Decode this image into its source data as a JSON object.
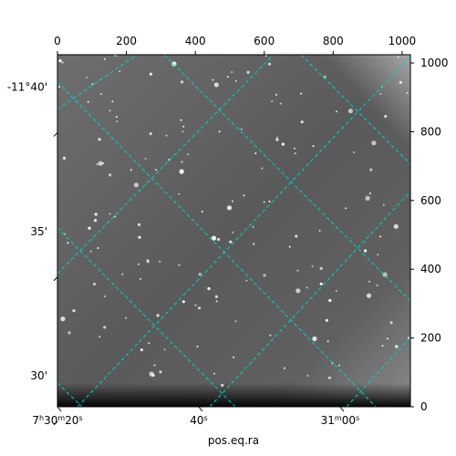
{
  "chart_data": {
    "type": "image",
    "xlabel": "pos.eq.ra",
    "pixel_axes": {
      "x_ticks": [
        "0",
        "200",
        "400",
        "600",
        "800",
        "1000"
      ],
      "x_values": [
        0,
        200,
        400,
        600,
        800,
        1000
      ],
      "x_range": [
        0,
        1024
      ],
      "y_ticks": [
        "0",
        "200",
        "400",
        "600",
        "800",
        "1000"
      ],
      "y_values": [
        0,
        200,
        400,
        600,
        800,
        1000
      ],
      "y_range": [
        0,
        1024
      ]
    },
    "world_axes": {
      "ra_ticks": [
        {
          "main": "7",
          "sup1": "h",
          "mid": "30",
          "sup2": "m",
          "end": "20",
          "sup3": "s",
          "px": 0
        },
        {
          "main": "40",
          "sup1": "s",
          "mid": "",
          "sup2": "",
          "end": "",
          "sup3": "",
          "px": 410
        },
        {
          "main": "31",
          "sup1": "m",
          "mid": "00",
          "sup2": "s",
          "end": "",
          "sup3": "",
          "px": 820
        }
      ],
      "dec_ticks": [
        {
          "label": "-11°40'",
          "py": 930
        },
        {
          "label": "35'",
          "py": 510
        },
        {
          "label": "30'",
          "py": 90
        }
      ]
    },
    "grid": true,
    "grid_color": "#00d0d0",
    "image_colormap": "gray"
  }
}
